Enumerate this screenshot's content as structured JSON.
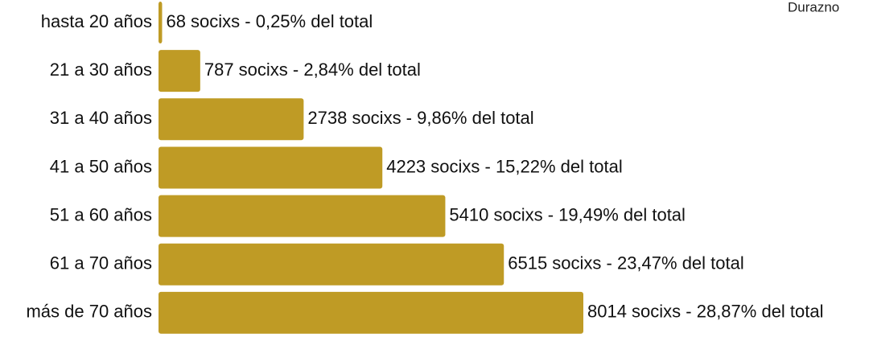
{
  "chart_data": {
    "type": "bar",
    "orientation": "horizontal",
    "categories": [
      "hasta 20 años",
      "21 a 30 años",
      "31 a 40 años",
      "41 a 50 años",
      "51 a 60 años",
      "61 a 70 años",
      "más de 70 años"
    ],
    "series": [
      {
        "name": "Durazno",
        "color": "#bf9b25",
        "values": [
          68,
          787,
          2738,
          4223,
          5410,
          6515,
          8014
        ],
        "value_labels": [
          "68 socixs - 0,25% del total",
          "787 socixs - 2,84% del total",
          "2738 socixs - 9,86% del total",
          "4223 socixs - 15,22% del total",
          "5410 socixs - 19,49% del total",
          "6515 socixs - 23,47% del total",
          "8014 socixs - 28,87% del total"
        ]
      }
    ]
  }
}
